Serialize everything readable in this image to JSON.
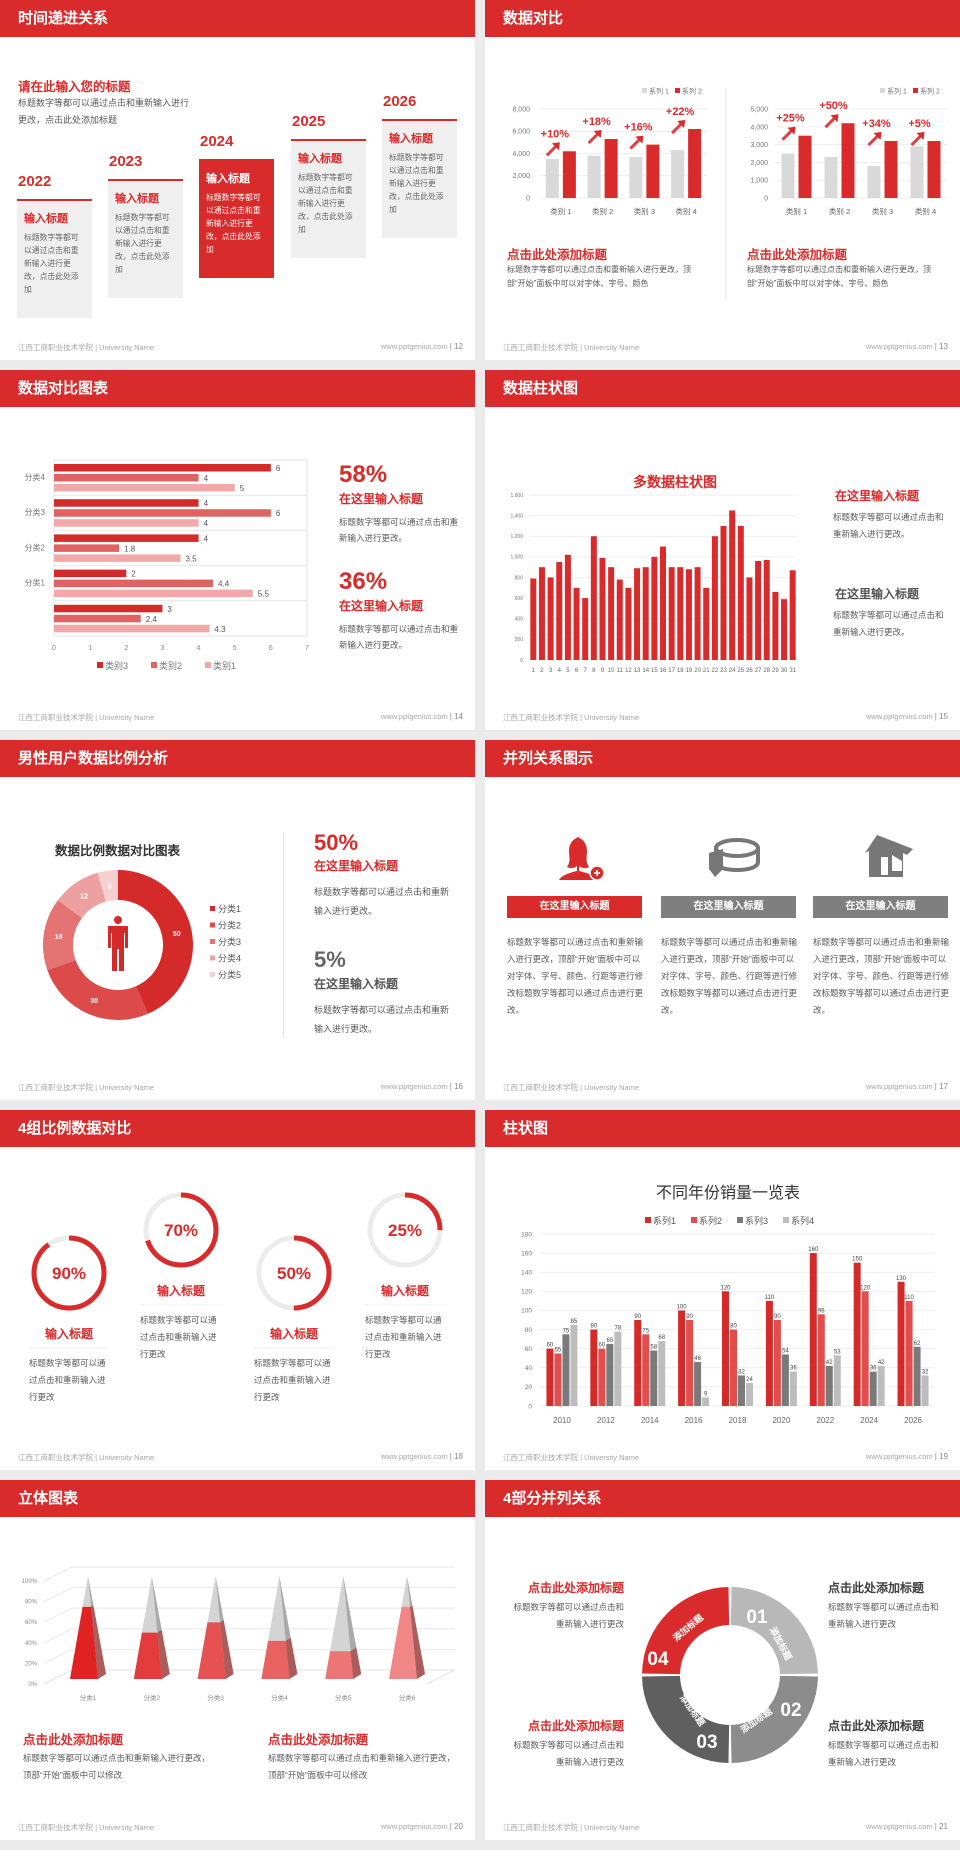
{
  "footer": {
    "left": "江西工商职业技术学院 | University Name",
    "site": "www.pptgenius.com"
  },
  "colors": {
    "brand": "#d92b2b",
    "gray_light": "#d9d9d9",
    "gray_mid": "#8c8c8c",
    "gray_dark": "#5f5f5f"
  },
  "slides": {
    "s12": {
      "title": "时间递进关系",
      "page": "| 12",
      "heading": "请在此输入您的标题",
      "desc": "标题数字等都可以通过点击和重新输入进行更改，点击此处添加标题",
      "highlight": "2024",
      "steps": [
        {
          "year": "2022",
          "title": "输入标题",
          "text": "标题数字等都可以通过点击和重新输入进行更改，点击此处添加"
        },
        {
          "year": "2023",
          "title": "输入标题",
          "text": "标题数字等都可以通过点击和重新输入进行更改，点击此处添加"
        },
        {
          "year": "2024",
          "title": "输入标题",
          "text": "标题数字等都可以通过点击和重新输入进行更改，点击此处添加"
        },
        {
          "year": "2025",
          "title": "输入标题",
          "text": "标题数字等都可以通过点击和重新输入进行更改，点击此处添加"
        },
        {
          "year": "2026",
          "title": "输入标题",
          "text": "标题数字等都可以通过点击和重新输入进行更改，点击此处添加"
        }
      ]
    },
    "s13": {
      "title": "数据对比",
      "page": "| 13",
      "blocks": [
        {
          "heading": "点击此处添加标题",
          "text": "标题数字等都可以通过点击和重新输入进行更改，顶部“开始”面板中可以对字体、字号、颜色"
        },
        {
          "heading": "点击此处添加标题",
          "text": "标题数字等都可以通过点击和重新输入进行更改，顶部“开始”面板中可以对字体、字号、颜色"
        }
      ]
    },
    "s14": {
      "title": "数据对比图表",
      "page": "| 14",
      "stats": [
        {
          "value": "58%",
          "heading": "在这里输入标题",
          "text": "标题数字等都可以通过点击和重新输入进行更改。"
        },
        {
          "value": "36%",
          "heading": "在这里输入标题",
          "text": "标题数字等都可以通过点击和重新输入进行更改。"
        }
      ]
    },
    "s15": {
      "title": "数据柱状图",
      "page": "| 15",
      "items": [
        {
          "heading": "在这里输入标题",
          "text": "标题数字等都可以通过点击和重新输入进行更改。"
        },
        {
          "heading": "在这里输入标题",
          "text": "标题数字等都可以通过点击和重新输入进行更改。"
        }
      ]
    },
    "s16": {
      "title": "男性用户数据比例分析",
      "page": "| 16",
      "stats": [
        {
          "value": "50%",
          "heading": "在这里输入标题",
          "text": "标题数字等都可以通过点击和重新输入进行更改。"
        },
        {
          "value": "5%",
          "heading": "在这里输入标题",
          "text": "标题数字等都可以通过点击和重新输入进行更改。"
        }
      ]
    },
    "s17": {
      "title": "并列关系图示",
      "page": "| 17",
      "columns": [
        {
          "icon": "female-user-add-icon",
          "heading": "在这里输入标题",
          "text": "标题数字等都可以通过点击和重新输入进行更改，顶部“开始”面板中可以对字体、字号、颜色、行距等进行修改标题数字等都可以通过点击进行更改。"
        },
        {
          "icon": "pie-chart-3d-icon",
          "heading": "在这里输入标题",
          "text": "标题数字等都可以通过点击和重新输入进行更改，顶部“开始”面板中可以对字体、字号、颜色、行距等进行修改标题数字等都可以通过点击进行更改。"
        },
        {
          "icon": "store-icon",
          "heading": "在这里输入标题",
          "text": "标题数字等都可以通过点击和重新输入进行更改，顶部“开始”面板中可以对字体、字号、颜色、行距等进行修改标题数字等都可以通过点击进行更改。"
        }
      ]
    },
    "s18": {
      "title": "4组比例数据对比",
      "page": "| 18",
      "rings": [
        {
          "percent": 90,
          "label": "90%",
          "heading": "输入标题",
          "text": "标题数字等都可以通过点击和重新输入进行更改"
        },
        {
          "percent": 70,
          "label": "70%",
          "heading": "输入标题",
          "text": "标题数字等都可以通过点击和重新输入进行更改"
        },
        {
          "percent": 50,
          "label": "50%",
          "heading": "输入标题",
          "text": "标题数字等都可以通过点击和重新输入进行更改"
        },
        {
          "percent": 25,
          "label": "25%",
          "heading": "输入标题",
          "text": "标题数字等都可以通过点击和重新输入进行更改"
        }
      ]
    },
    "s19": {
      "title": "柱状图",
      "page": "| 19"
    },
    "s20": {
      "title": "立体图表",
      "page": "| 20",
      "blocks": [
        {
          "heading": "点击此处添加标题",
          "text": "标题数字等都可以通过点击和重新输入进行更改，顶部“开始”面板中可以修改"
        },
        {
          "heading": "点击此处添加标题",
          "text": "标题数字等都可以通过点击和重新输入进行更改，顶部“开始”面板中可以修改"
        }
      ]
    },
    "s21": {
      "title": "4部分并列关系",
      "page": "| 21",
      "segments": [
        {
          "number": "01",
          "label": "添加标题",
          "color": "#b8b8b8"
        },
        {
          "number": "02",
          "label": "添加标题",
          "color": "#8c8c8c"
        },
        {
          "number": "03",
          "label": "添加标题",
          "color": "#5f5f5f"
        },
        {
          "number": "04",
          "label": "添加标题",
          "color": "#d92b2b"
        }
      ],
      "blocks": [
        {
          "heading": "点击此处添加标题",
          "text": "标题数字等都可以通过点击和重新输入进行更改"
        },
        {
          "heading": "点击此处添加标题",
          "text": "标题数字等都可以通过点击和重新输入进行更改"
        },
        {
          "heading": "点击此处添加标题",
          "text": "标题数字等都可以通过点击和重新输入进行更改"
        },
        {
          "heading": "点击此处添加标题",
          "text": "标题数字等都可以通过点击和重新输入进行更改"
        }
      ]
    }
  },
  "chart_data": [
    {
      "type": "bar",
      "categories": [
        "类别 1",
        "类别 2",
        "类别 3",
        "类别 4"
      ],
      "series": [
        {
          "name": "系列 1",
          "values": [
            3500,
            3800,
            3700,
            4300
          ]
        },
        {
          "name": "系列 2",
          "values": [
            4200,
            5300,
            4800,
            6200
          ]
        }
      ],
      "ylim": [
        0,
        8000
      ],
      "yticks": [
        0,
        2000,
        4000,
        6000,
        8000
      ],
      "annotations": [
        "+10%",
        "+18%",
        "+16%",
        "+22%"
      ],
      "legend": "top-right",
      "grid": true,
      "colors": [
        "#d9d9d9",
        "#d92b2b"
      ]
    },
    {
      "type": "bar",
      "categories": [
        "类别 1",
        "类别 2",
        "类别 3",
        "类别 4"
      ],
      "series": [
        {
          "name": "系列 1",
          "values": [
            2500,
            2300,
            1800,
            2900
          ]
        },
        {
          "name": "系列 2",
          "values": [
            3500,
            4200,
            3200,
            3200
          ]
        }
      ],
      "ylim": [
        0,
        5000
      ],
      "yticks": [
        0,
        1000,
        2000,
        3000,
        4000,
        5000
      ],
      "annotations": [
        "+25%",
        "+50%",
        "+34%",
        "+5%"
      ],
      "legend": "top-right",
      "grid": true,
      "colors": [
        "#d9d9d9",
        "#d92b2b"
      ]
    },
    {
      "type": "bar",
      "orientation": "horizontal",
      "categories": [
        "分类4",
        "分类3",
        "分类2",
        "分类1",
        ""
      ],
      "series": [
        {
          "name": "类别3",
          "values": [
            6,
            4,
            4,
            2,
            3
          ]
        },
        {
          "name": "类别2",
          "values": [
            4,
            6,
            1.8,
            4.4,
            2.4
          ]
        },
        {
          "name": "类别1",
          "values": [
            5,
            4,
            3.5,
            5.5,
            4.3
          ]
        }
      ],
      "xlim": [
        0,
        7
      ],
      "xticks": [
        0,
        1,
        2,
        3,
        4,
        5,
        6,
        7
      ],
      "legend": "bottom",
      "colors": [
        "#d42a2a",
        "#e06363",
        "#f0a8a8"
      ]
    },
    {
      "type": "bar",
      "title": "多数据柱状图",
      "categories": [
        "1",
        "2",
        "3",
        "4",
        "5",
        "6",
        "7",
        "8",
        "9",
        "10",
        "11",
        "12",
        "13",
        "14",
        "15",
        "16",
        "17",
        "18",
        "19",
        "20",
        "21",
        "22",
        "23",
        "24",
        "25",
        "26",
        "27",
        "28",
        "29",
        "30",
        "31"
      ],
      "values": [
        790,
        900,
        800,
        950,
        1020,
        700,
        600,
        1200,
        990,
        900,
        780,
        700,
        890,
        900,
        1000,
        1100,
        900,
        900,
        880,
        900,
        700,
        1200,
        1300,
        1450,
        1300,
        800,
        960,
        970,
        660,
        590,
        870
      ],
      "ylim": [
        0,
        1600
      ],
      "yticks": [
        0,
        200,
        400,
        600,
        800,
        1000,
        1200,
        1400,
        1600
      ],
      "grid": true,
      "colors": [
        "#d92b2b"
      ]
    },
    {
      "type": "pie",
      "subtype": "donut",
      "title": "数据比例数据对比图表",
      "categories": [
        "分类1",
        "分类2",
        "分类3",
        "分类4",
        "分类5"
      ],
      "values": [
        50,
        30,
        18,
        12,
        5
      ],
      "legend": "right",
      "colors": [
        "#d42a2a",
        "#dc4a4a",
        "#e57373",
        "#eda0a0",
        "#f6d0d0"
      ]
    },
    {
      "type": "bar",
      "title": "不同年份销量一览表",
      "categories": [
        "2010",
        "2012",
        "2014",
        "2016",
        "2018",
        "2020",
        "2022",
        "2024",
        "2026"
      ],
      "series": [
        {
          "name": "系列1",
          "values": [
            60,
            80,
            90,
            100,
            120,
            110,
            160,
            150,
            130
          ]
        },
        {
          "name": "系列2",
          "values": [
            55,
            60,
            75,
            90,
            80,
            90,
            96,
            120,
            110
          ]
        },
        {
          "name": "系列3",
          "values": [
            75,
            65,
            58,
            46,
            32,
            54,
            42,
            36,
            62
          ]
        },
        {
          "name": "系列4",
          "values": [
            85,
            78,
            68,
            9,
            24,
            36,
            53,
            42,
            32
          ]
        }
      ],
      "ylim": [
        0,
        180
      ],
      "yticks": [
        0,
        20,
        40,
        60,
        80,
        100,
        120,
        140,
        160,
        180
      ],
      "legend": "top",
      "grid": true,
      "colors": [
        "#d42a2a",
        "#e24d4d",
        "#7a7a7a",
        "#bdbdbd"
      ]
    },
    {
      "type": "bar",
      "subtype": "3d-pyramid-percent",
      "categories": [
        "分类1",
        "分类2",
        "分类3",
        "分类4",
        "分类5",
        "分类6"
      ],
      "values": [
        70,
        45,
        55,
        37,
        27,
        70
      ],
      "ylim": [
        0,
        100
      ],
      "yticks": [
        "0%",
        "20%",
        "40%",
        "60%",
        "80%",
        "100%"
      ],
      "grid": true,
      "colors": [
        "#e02222",
        "#e43c3c",
        "#e65252",
        "#e96262",
        "#ec7474",
        "#f08686"
      ]
    }
  ]
}
